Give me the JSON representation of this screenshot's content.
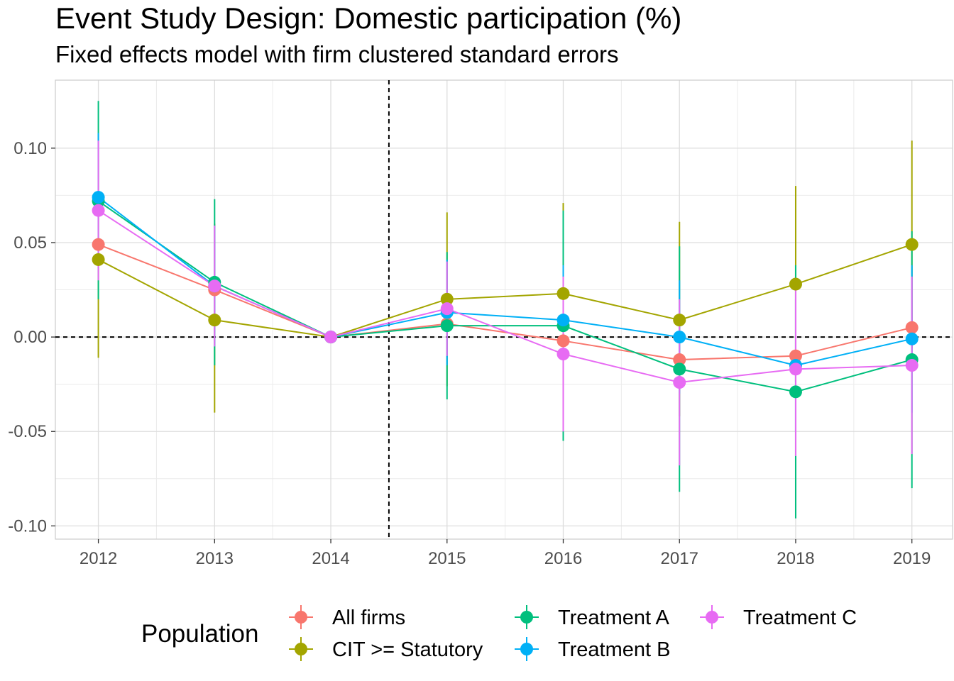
{
  "chart_data": {
    "type": "line",
    "title": "Event Study Design: Domestic participation (%)",
    "subtitle": "Fixed effects model with firm clustered standard errors",
    "xlabel": "",
    "ylabel": "",
    "x": [
      2012,
      2013,
      2014,
      2015,
      2016,
      2017,
      2018,
      2019
    ],
    "x_tick_labels": [
      "2012",
      "2013",
      "2014",
      "2015",
      "2016",
      "2017",
      "2018",
      "2019"
    ],
    "y_ticks": [
      -0.1,
      -0.05,
      0.0,
      0.05,
      0.1
    ],
    "y_tick_labels": [
      "-0.10",
      "-0.05",
      "0.00",
      "0.05",
      "0.10"
    ],
    "ylim": [
      -0.107,
      0.136
    ],
    "reference_lines": {
      "vertical_x": 2014.5,
      "horizontal_y": 0.0,
      "style": "dashed"
    },
    "grid": true,
    "legend": {
      "title": "Population",
      "position": "bottom"
    },
    "series": [
      {
        "name": "All firms",
        "color": "#F8766D",
        "values": [
          0.049,
          0.025,
          0.0,
          0.007,
          -0.002,
          -0.012,
          -0.01,
          0.005
        ],
        "lower": [
          null,
          null,
          0.0,
          null,
          null,
          null,
          null,
          null
        ],
        "upper": [
          null,
          null,
          0.0,
          null,
          null,
          null,
          null,
          null
        ]
      },
      {
        "name": "CIT >= Statutory",
        "color": "#A3A500",
        "values": [
          0.041,
          0.009,
          0.0,
          0.02,
          0.023,
          0.009,
          0.028,
          0.049
        ],
        "lower": [
          -0.011,
          -0.04,
          0.0,
          -0.026,
          -0.024,
          -0.042,
          -0.024,
          -0.006
        ],
        "upper": [
          0.094,
          0.06,
          0.0,
          0.066,
          0.071,
          0.061,
          0.08,
          0.104
        ]
      },
      {
        "name": "Treatment A",
        "color": "#00BF7D",
        "values": [
          0.072,
          0.029,
          0.0,
          0.006,
          0.006,
          -0.017,
          -0.029,
          -0.012
        ],
        "lower": [
          0.02,
          -0.015,
          0.0,
          -0.033,
          -0.055,
          -0.082,
          -0.096,
          -0.08
        ],
        "upper": [
          0.125,
          0.073,
          0.0,
          0.045,
          0.067,
          0.048,
          0.038,
          0.056
        ]
      },
      {
        "name": "Treatment B",
        "color": "#00B0F6",
        "values": [
          0.074,
          0.027,
          0.0,
          0.013,
          0.009,
          0.0,
          -0.015,
          -0.001
        ],
        "lower": [
          0.04,
          -0.005,
          0.0,
          -0.015,
          -0.02,
          -0.03,
          -0.05,
          -0.04
        ],
        "upper": [
          0.108,
          0.059,
          0.0,
          0.041,
          0.038,
          0.03,
          0.02,
          0.038
        ]
      },
      {
        "name": "Treatment C",
        "color": "#E76BF3",
        "values": [
          0.067,
          0.027,
          0.0,
          0.015,
          -0.009,
          -0.024,
          -0.017,
          -0.015
        ],
        "lower": [
          0.03,
          -0.005,
          0.0,
          -0.01,
          -0.05,
          -0.068,
          -0.063,
          -0.062
        ],
        "upper": [
          0.104,
          0.059,
          0.0,
          0.04,
          0.032,
          0.02,
          0.029,
          0.032
        ]
      }
    ]
  }
}
